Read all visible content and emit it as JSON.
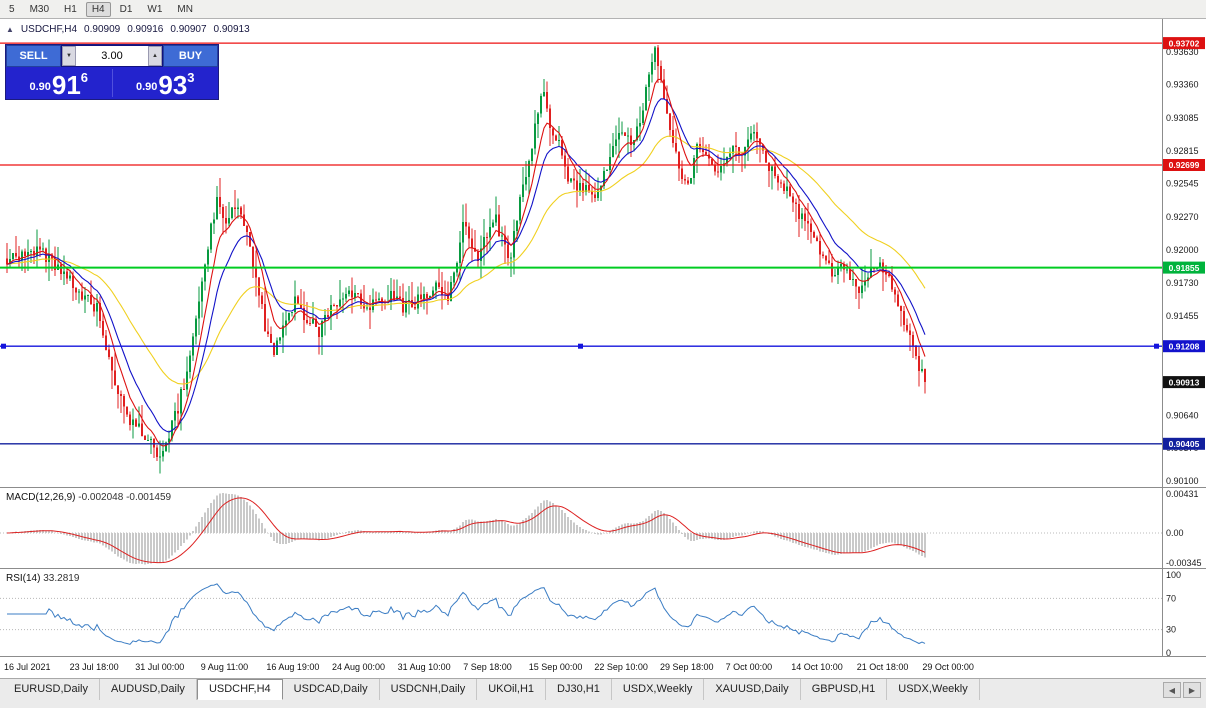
{
  "toolbar": {
    "timeframes": [
      "5",
      "M30",
      "H1",
      "H4",
      "D1",
      "W1",
      "MN"
    ],
    "active_index": 3
  },
  "chart": {
    "info": {
      "collapse_icon": "▲",
      "symbol": "USDCHF,H4",
      "open": "0.90909",
      "high": "0.90916",
      "low": "0.90907",
      "close": "0.90913"
    },
    "one_click": {
      "sell_label": "SELL",
      "buy_label": "BUY",
      "lot_value": "3.00",
      "spin_down_icon": "▼",
      "spin_up_icon": "▲",
      "sell_price": {
        "prefix": "0.90",
        "big": "91",
        "sup": "6"
      },
      "buy_price": {
        "prefix": "0.90",
        "big": "93",
        "sup": "3"
      }
    }
  },
  "chart_data": {
    "type": "candlestick",
    "symbol": "USDCHF",
    "timeframe": "H4",
    "candle_count": 307,
    "price_range": {
      "top": 0.939,
      "bottom": 0.9005
    },
    "up_color": "#089a40",
    "down_color": "#e02020",
    "price_path_anchors": [
      [
        0,
        0.9193
      ],
      [
        11,
        0.92
      ],
      [
        20,
        0.9176
      ],
      [
        30,
        0.9152
      ],
      [
        36,
        0.9092
      ],
      [
        41,
        0.906
      ],
      [
        47,
        0.9046
      ],
      [
        51,
        0.9031
      ],
      [
        53,
        0.9042
      ],
      [
        57,
        0.907
      ],
      [
        61,
        0.911
      ],
      [
        64,
        0.916
      ],
      [
        67,
        0.9205
      ],
      [
        70,
        0.9242
      ],
      [
        73,
        0.9222
      ],
      [
        77,
        0.9238
      ],
      [
        80,
        0.921
      ],
      [
        83,
        0.9175
      ],
      [
        86,
        0.9138
      ],
      [
        89,
        0.9115
      ],
      [
        92,
        0.9142
      ],
      [
        96,
        0.9158
      ],
      [
        100,
        0.9144
      ],
      [
        104,
        0.9132
      ],
      [
        108,
        0.9152
      ],
      [
        112,
        0.9162
      ],
      [
        116,
        0.9166
      ],
      [
        120,
        0.9152
      ],
      [
        124,
        0.9158
      ],
      [
        128,
        0.9164
      ],
      [
        132,
        0.9152
      ],
      [
        136,
        0.9156
      ],
      [
        140,
        0.9166
      ],
      [
        144,
        0.9172
      ],
      [
        147,
        0.916
      ],
      [
        150,
        0.9188
      ],
      [
        152,
        0.9225
      ],
      [
        154,
        0.9205
      ],
      [
        157,
        0.9192
      ],
      [
        160,
        0.9212
      ],
      [
        163,
        0.9224
      ],
      [
        166,
        0.92
      ],
      [
        168,
        0.9194
      ],
      [
        171,
        0.9245
      ],
      [
        174,
        0.9272
      ],
      [
        177,
        0.9312
      ],
      [
        179,
        0.9334
      ],
      [
        181,
        0.9298
      ],
      [
        184,
        0.9288
      ],
      [
        187,
        0.926
      ],
      [
        190,
        0.9248
      ],
      [
        193,
        0.9254
      ],
      [
        196,
        0.9245
      ],
      [
        199,
        0.9262
      ],
      [
        202,
        0.929
      ],
      [
        205,
        0.9298
      ],
      [
        208,
        0.9288
      ],
      [
        211,
        0.9302
      ],
      [
        214,
        0.9342
      ],
      [
        216,
        0.9362
      ],
      [
        218,
        0.9335
      ],
      [
        220,
        0.9312
      ],
      [
        222,
        0.929
      ],
      [
        225,
        0.9262
      ],
      [
        227,
        0.9255
      ],
      [
        230,
        0.9282
      ],
      [
        233,
        0.9276
      ],
      [
        236,
        0.9262
      ],
      [
        239,
        0.9275
      ],
      [
        242,
        0.9286
      ],
      [
        245,
        0.928
      ],
      [
        248,
        0.9298
      ],
      [
        251,
        0.9284
      ],
      [
        254,
        0.927
      ],
      [
        257,
        0.9258
      ],
      [
        260,
        0.9247
      ],
      [
        263,
        0.9235
      ],
      [
        266,
        0.9222
      ],
      [
        269,
        0.9212
      ],
      [
        272,
        0.9196
      ],
      [
        275,
        0.918
      ],
      [
        278,
        0.919
      ],
      [
        281,
        0.9177
      ],
      [
        284,
        0.9168
      ],
      [
        287,
        0.918
      ],
      [
        290,
        0.9188
      ],
      [
        293,
        0.918
      ],
      [
        296,
        0.9162
      ],
      [
        299,
        0.9142
      ],
      [
        302,
        0.912
      ],
      [
        304,
        0.9104
      ],
      [
        306,
        0.90913
      ]
    ],
    "moving_averages": [
      {
        "period": 40,
        "color": "#f0d020"
      },
      {
        "period": 14,
        "color": "#1212c8"
      },
      {
        "period": 7,
        "color": "#dd1111"
      }
    ],
    "hlines": [
      {
        "value": 0.93702,
        "label": "0.93702",
        "line_color": "#ee1111",
        "label_bg": "#dd1111",
        "width": 1.2,
        "selected": false
      },
      {
        "value": 0.92699,
        "label": "0.92699",
        "line_color": "#ee1111",
        "label_bg": "#dd1111",
        "width": 1.2,
        "selected": false
      },
      {
        "value": 0.91855,
        "label": "0.91855",
        "line_color": "#00cc22",
        "label_bg": "#00b33c",
        "width": 2,
        "selected": false
      },
      {
        "value": 0.91208,
        "label": "0.91208",
        "line_color": "#1414dd",
        "label_bg": "#1212cc",
        "width": 1.4,
        "selected": true
      },
      {
        "value": 0.90405,
        "label": "0.90405",
        "line_color": "#12209e",
        "label_bg": "#12209e",
        "width": 1.4,
        "selected": false
      }
    ],
    "current_price": {
      "value": 0.90913,
      "label": "0.90913",
      "label_bg": "#111111"
    },
    "price_axis_ticks": [
      "0.93630",
      "0.93360",
      "0.93085",
      "0.92815",
      "0.92545",
      "0.92270",
      "0.92000",
      "0.91730",
      "0.91455",
      "0.91185",
      "0.90910",
      "0.90640",
      "0.90370",
      "0.90100"
    ],
    "time_labels": [
      "16 Jul 2021",
      "23 Jul 18:00",
      "31 Jul 00:00",
      "9 Aug 11:00",
      "16 Aug 19:00",
      "24 Aug 00:00",
      "31 Aug 10:00",
      "7 Sep 18:00",
      "15 Sep 00:00",
      "22 Sep 10:00",
      "29 Sep 18:00",
      "7 Oct 00:00",
      "14 Oct 10:00",
      "21 Oct 18:00",
      "29 Oct 00:00"
    ],
    "macd": {
      "label": "MACD(12,26,9)",
      "current_values": "-0.002048 -0.001459",
      "fast": 12,
      "slow": 26,
      "signal": 9,
      "axis_labels": [
        "0.00431",
        "0.00",
        "-0.00345"
      ],
      "histogram_color": "#c9c9c9",
      "signal_color": "#dd2222"
    },
    "rsi": {
      "label": "RSI(14)",
      "current_value": "33.2819",
      "period": 14,
      "axis_labels": [
        "100",
        "70",
        "30",
        "0"
      ],
      "levels": [
        70,
        30
      ],
      "line_color": "#3b7dc4"
    }
  },
  "tabs": {
    "items": [
      "EURUSD,Daily",
      "AUDUSD,Daily",
      "USDCHF,H4",
      "USDCAD,Daily",
      "USDCNH,Daily",
      "UKOil,H1",
      "DJ30,H1",
      "USDX,Weekly",
      "XAUUSD,Daily",
      "GBPUSD,H1",
      "USDX,Weekly"
    ],
    "active_index": 2,
    "nav_left": "◀",
    "nav_right": "▶"
  }
}
